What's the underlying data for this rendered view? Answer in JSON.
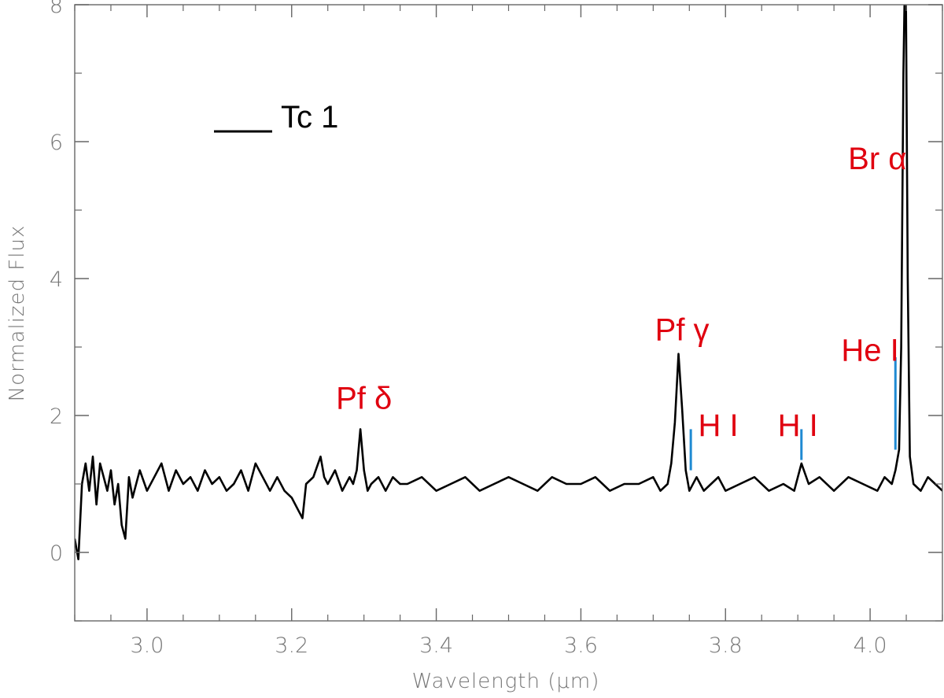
{
  "chart_data": {
    "type": "line",
    "xlabel": "Wavelength (μm)",
    "ylabel": "Normalized Flux",
    "xlim": [
      2.9,
      4.1
    ],
    "ylim": [
      -1,
      8
    ],
    "x_ticks": [
      3.0,
      3.2,
      3.4,
      3.6,
      3.8,
      4.0
    ],
    "x_tick_labels": [
      "3.0",
      "3.2",
      "3.4",
      "3.6",
      "3.8",
      "4.0"
    ],
    "y_ticks": [
      0,
      2,
      4,
      6,
      8
    ],
    "y_tick_labels": [
      "0",
      "2",
      "4",
      "6",
      "8"
    ],
    "grid": false,
    "legend": {
      "entries": [
        {
          "label": "Tc 1",
          "color": "#000000"
        }
      ],
      "position": "top-left"
    },
    "series": [
      {
        "name": "Tc 1",
        "color": "#000000",
        "x": [
          2.9,
          2.905,
          2.91,
          2.915,
          2.92,
          2.925,
          2.93,
          2.935,
          2.94,
          2.945,
          2.95,
          2.955,
          2.96,
          2.965,
          2.97,
          2.975,
          2.98,
          2.99,
          3.0,
          3.01,
          3.02,
          3.03,
          3.04,
          3.05,
          3.06,
          3.07,
          3.08,
          3.09,
          3.1,
          3.11,
          3.12,
          3.13,
          3.14,
          3.15,
          3.16,
          3.17,
          3.18,
          3.19,
          3.2,
          3.21,
          3.215,
          3.22,
          3.23,
          3.24,
          3.245,
          3.25,
          3.26,
          3.27,
          3.28,
          3.285,
          3.29,
          3.295,
          3.3,
          3.305,
          3.31,
          3.32,
          3.33,
          3.34,
          3.35,
          3.36,
          3.38,
          3.4,
          3.42,
          3.44,
          3.46,
          3.48,
          3.5,
          3.52,
          3.54,
          3.56,
          3.58,
          3.6,
          3.62,
          3.64,
          3.66,
          3.68,
          3.7,
          3.71,
          3.72,
          3.725,
          3.73,
          3.735,
          3.74,
          3.745,
          3.75,
          3.76,
          3.77,
          3.78,
          3.79,
          3.8,
          3.82,
          3.84,
          3.86,
          3.88,
          3.895,
          3.905,
          3.915,
          3.93,
          3.95,
          3.97,
          3.99,
          4.01,
          4.02,
          4.03,
          4.035,
          4.04,
          4.043,
          4.046,
          4.049,
          4.052,
          4.055,
          4.06,
          4.07,
          4.08,
          4.09,
          4.1
        ],
        "y": [
          0.2,
          -0.1,
          1.0,
          1.3,
          0.9,
          1.4,
          0.7,
          1.3,
          1.1,
          0.9,
          1.2,
          0.7,
          1.0,
          0.4,
          0.2,
          1.1,
          0.8,
          1.2,
          0.9,
          1.1,
          1.3,
          0.9,
          1.2,
          1.0,
          1.1,
          0.9,
          1.2,
          1.0,
          1.1,
          0.9,
          1.0,
          1.2,
          0.9,
          1.3,
          1.1,
          0.9,
          1.1,
          0.9,
          0.8,
          0.6,
          0.5,
          1.0,
          1.1,
          1.4,
          1.1,
          1.0,
          1.2,
          0.9,
          1.1,
          1.0,
          1.2,
          1.8,
          1.2,
          0.9,
          1.0,
          1.1,
          0.9,
          1.1,
          1.0,
          1.0,
          1.1,
          0.9,
          1.0,
          1.1,
          0.9,
          1.0,
          1.1,
          1.0,
          0.9,
          1.1,
          1.0,
          1.0,
          1.1,
          0.9,
          1.0,
          1.0,
          1.1,
          0.9,
          1.0,
          1.3,
          1.9,
          2.9,
          2.1,
          1.2,
          0.9,
          1.1,
          0.9,
          1.0,
          1.1,
          0.9,
          1.0,
          1.1,
          0.9,
          1.0,
          0.9,
          1.3,
          1.0,
          1.1,
          0.9,
          1.1,
          1.0,
          0.9,
          1.1,
          1.0,
          1.2,
          1.5,
          3.0,
          7.0,
          9.0,
          4.0,
          1.4,
          1.0,
          0.9,
          1.1,
          1.0,
          0.9
        ]
      }
    ],
    "annotations": [
      {
        "text": "Pf δ",
        "x": 3.3,
        "y": 2.1,
        "color": "#e0000f"
      },
      {
        "text": "Pf γ",
        "x": 3.74,
        "y": 3.1,
        "color": "#e0000f"
      },
      {
        "text": "H I",
        "x": 3.79,
        "y": 1.7,
        "color": "#e0000f"
      },
      {
        "text": "H I",
        "x": 3.9,
        "y": 1.7,
        "color": "#e0000f"
      },
      {
        "text": "He I",
        "x": 4.0,
        "y": 2.8,
        "color": "#e0000f"
      },
      {
        "text": "Br α",
        "x": 4.01,
        "y": 5.6,
        "color": "#e0000f"
      }
    ],
    "line_markers": [
      {
        "x": 3.752,
        "y0": 1.2,
        "y1": 1.8,
        "color": "#1f8ad2"
      },
      {
        "x": 3.905,
        "y0": 1.35,
        "y1": 1.8,
        "color": "#1f8ad2"
      },
      {
        "x": 4.035,
        "y0": 1.5,
        "y1": 2.85,
        "color": "#1f8ad2"
      }
    ]
  }
}
